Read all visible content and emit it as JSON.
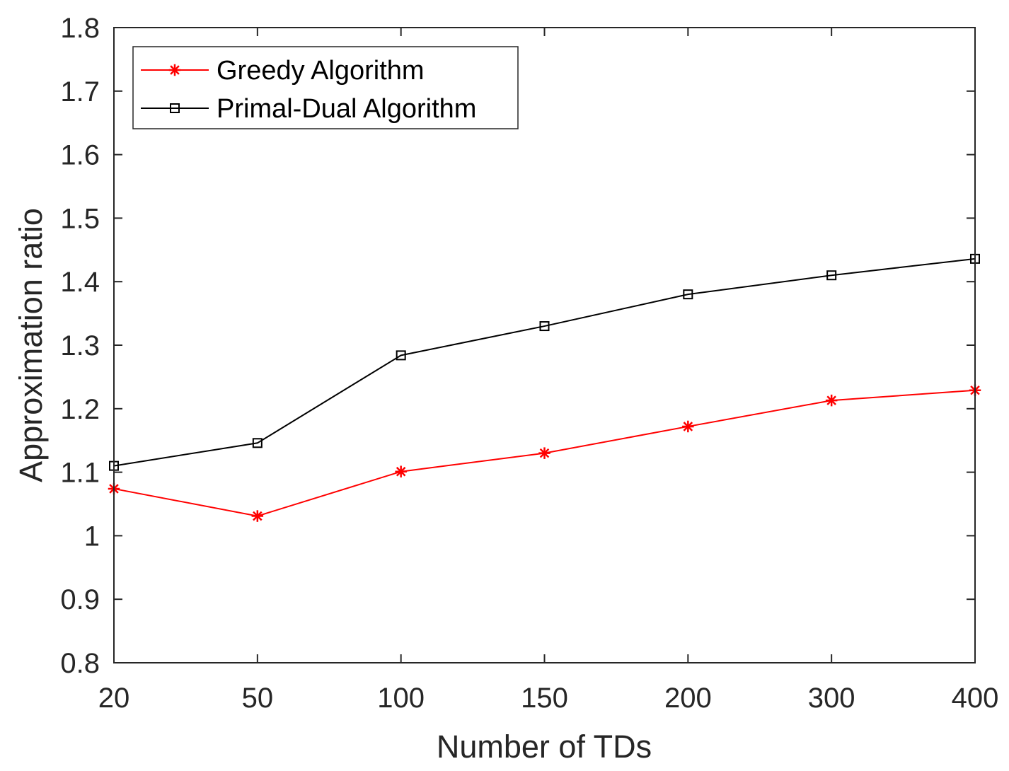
{
  "chart_data": {
    "type": "line",
    "title": "",
    "xlabel": "Number of TDs",
    "ylabel": "Approximation ratio",
    "categories": [
      "20",
      "50",
      "100",
      "150",
      "200",
      "300",
      "400"
    ],
    "ylim": [
      0.8,
      1.8
    ],
    "yticks": [
      "0.8",
      "0.9",
      "1",
      "1.1",
      "1.2",
      "1.3",
      "1.4",
      "1.5",
      "1.6",
      "1.7",
      "1.8"
    ],
    "grid": false,
    "legend_position": "top-left",
    "series": [
      {
        "name": "Greedy Algorithm",
        "color": "#ff0000",
        "marker": "asterisk",
        "values": [
          1.074,
          1.031,
          1.101,
          1.13,
          1.172,
          1.213,
          1.229
        ]
      },
      {
        "name": "Primal-Dual Algorithm",
        "color": "#000000",
        "marker": "square",
        "values": [
          1.11,
          1.146,
          1.284,
          1.33,
          1.38,
          1.41,
          1.436
        ]
      }
    ]
  }
}
